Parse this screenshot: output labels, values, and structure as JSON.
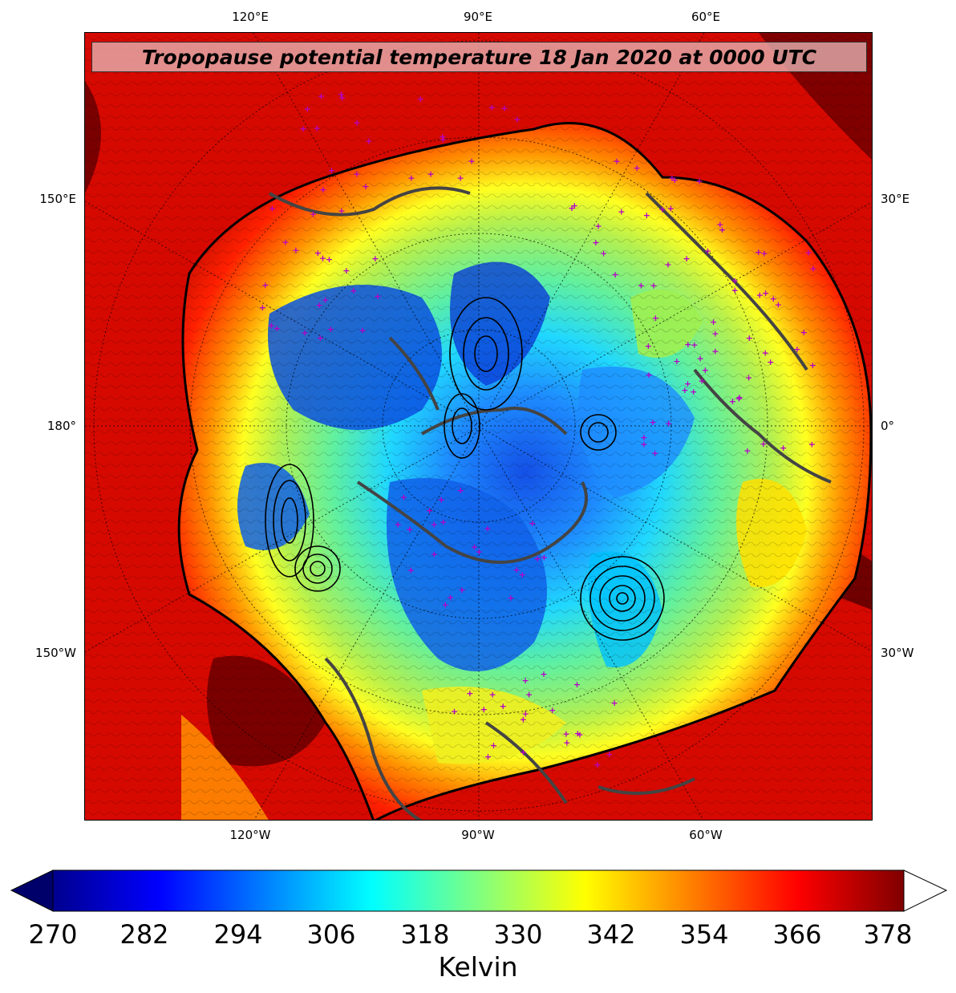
{
  "title": "Tropopause potential temperature 18 Jan 2020 at 0000 UTC",
  "map": {
    "projection": "north-polar-stereographic",
    "top_labels": [
      "120°E",
      "90°E",
      "60°E"
    ],
    "bottom_labels": [
      "120°W",
      "90°W",
      "60°W"
    ],
    "left_labels": [
      "150°E",
      "180°",
      "150°W"
    ],
    "right_labels": [
      "30°E",
      "0°",
      "30°W"
    ],
    "field": "tropopause potential temperature",
    "contours": "black thin isentropes with bold contour lines near cyclone centers",
    "markers": "magenta plus signs (station locations)",
    "marker_color": "#b400c8",
    "coastline_color": "#444444"
  },
  "colorbar": {
    "min": 270,
    "max": 378,
    "ticks": [
      "270",
      "282",
      "294",
      "306",
      "318",
      "330",
      "342",
      "354",
      "366",
      "378"
    ],
    "label": "Kelvin",
    "extend": "both",
    "colormap": "jet",
    "colors": [
      "#00008f",
      "#0000ff",
      "#0080ff",
      "#00ffff",
      "#80ff80",
      "#ffff00",
      "#ff8000",
      "#ff0000",
      "#800000"
    ],
    "over_color": "#ffffff"
  }
}
